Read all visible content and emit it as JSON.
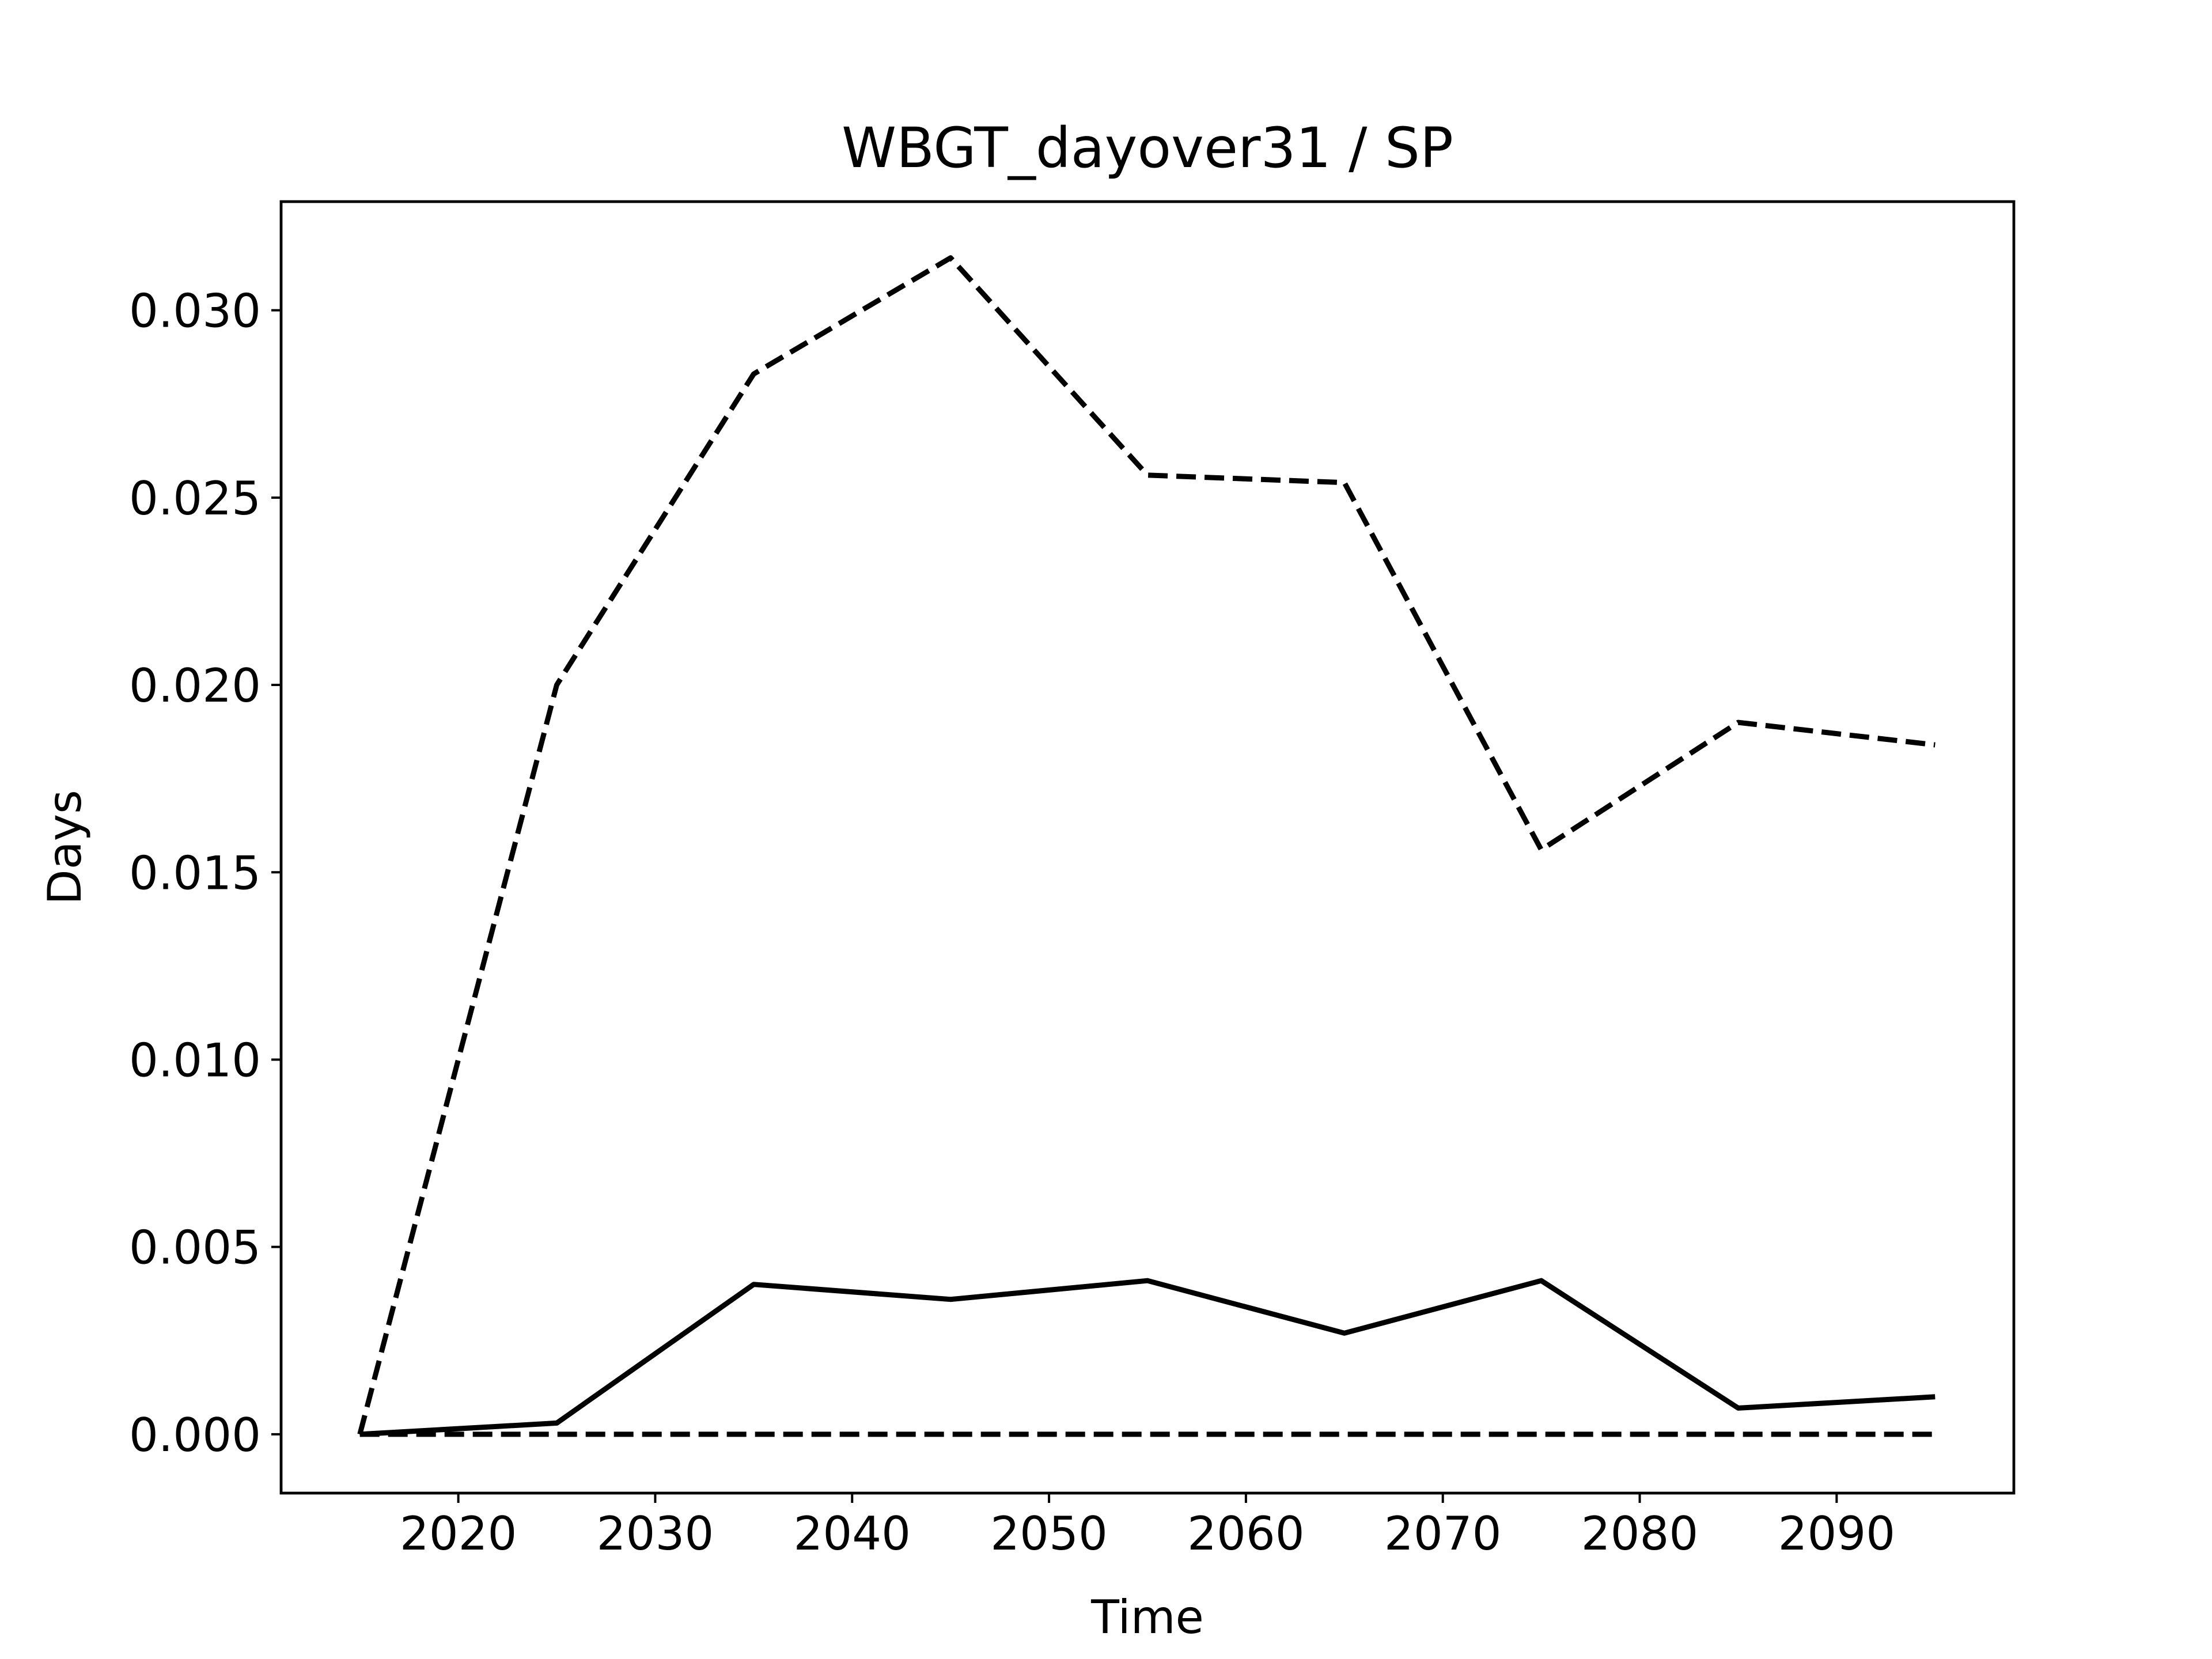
{
  "chart_data": {
    "type": "line",
    "title": "WBGT_dayover31 / SP",
    "xlabel": "Time",
    "ylabel": "Days",
    "xlim": [
      2011,
      2099
    ],
    "ylim": [
      -0.00157,
      0.0329
    ],
    "xticks": [
      2020,
      2030,
      2040,
      2050,
      2060,
      2070,
      2080,
      2090
    ],
    "yticks": [
      0.0,
      0.005,
      0.01,
      0.015,
      0.02,
      0.025,
      0.03
    ],
    "ytick_labels": [
      "0.000",
      "0.005",
      "0.010",
      "0.015",
      "0.020",
      "0.025",
      "0.030"
    ],
    "grid": false,
    "line_color": "#000000",
    "x": [
      2015,
      2025,
      2035,
      2045,
      2055,
      2065,
      2075,
      2085,
      2095
    ],
    "series": [
      {
        "style": "dashed",
        "values": [
          0.0,
          0.02,
          0.0283,
          0.0314,
          0.0256,
          0.0254,
          0.0156,
          0.019,
          0.0184
        ]
      },
      {
        "style": "solid",
        "values": [
          0.0,
          0.0003,
          0.004,
          0.0036,
          0.0041,
          0.0027,
          0.0041,
          0.0007,
          0.001
        ]
      },
      {
        "style": "dashed",
        "values": [
          0.0,
          0.0,
          0.0,
          0.0,
          0.0,
          0.0,
          0.0,
          0.0,
          0.0
        ]
      }
    ]
  }
}
